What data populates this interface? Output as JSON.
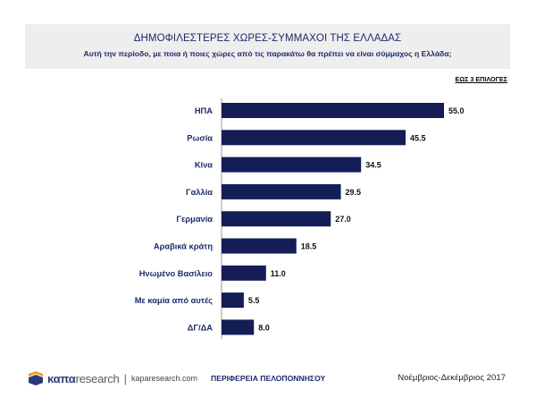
{
  "header": {
    "title": "ΔΗΜΟΦΙΛΕΣΤΕΡΕΣ ΧΩΡΕΣ-ΣΥΜΜΑΧΟΙ ΤΗΣ ΕΛΛΑΔΑΣ",
    "subtitle": "Αυτή την περίοδο, με ποια ή ποιες χώρες από τις παρακάτω θα πρέπει να είναι σύμμαχος η Ελλάδα;"
  },
  "note": "ΕΩΣ 3 ΕΠΙΛΟΓΕΣ",
  "chart_data": {
    "type": "bar",
    "orientation": "horizontal",
    "categories": [
      "ΗΠΑ",
      "Ρωσία",
      "Κίνα",
      "Γαλλία",
      "Γερμανία",
      "Αραβικά κράτη",
      "Ηνωμένο Βασίλειο",
      "Με καμία από αυτές",
      "ΔΓ/ΔΑ"
    ],
    "values": [
      55.0,
      45.5,
      34.5,
      29.5,
      27.0,
      18.5,
      11.0,
      5.5,
      8.0
    ],
    "value_labels": [
      "55.0",
      "45.5",
      "34.5",
      "29.5",
      "27.0",
      "18.5",
      "11.0",
      "5.5",
      "8.0"
    ],
    "xlim": [
      0,
      55
    ],
    "grid": false,
    "legend": "none",
    "bar_color": "#141d55"
  },
  "footer": {
    "brand_bold": "καπα",
    "brand_light": "research",
    "separator": "|",
    "url": "kaparesearch.com",
    "region": "ΠΕΡΙΦΕΡΕΙΑ ΠΕΛΟΠΟΝΝΗΣΟΥ",
    "date": "Νοέμβριος-Δεκέμβριος 2017"
  },
  "colors": {
    "accent": "#1f2a6b",
    "bar": "#141d55",
    "header_bg": "#eeeeee",
    "logo_orange": "#f39a1f"
  }
}
